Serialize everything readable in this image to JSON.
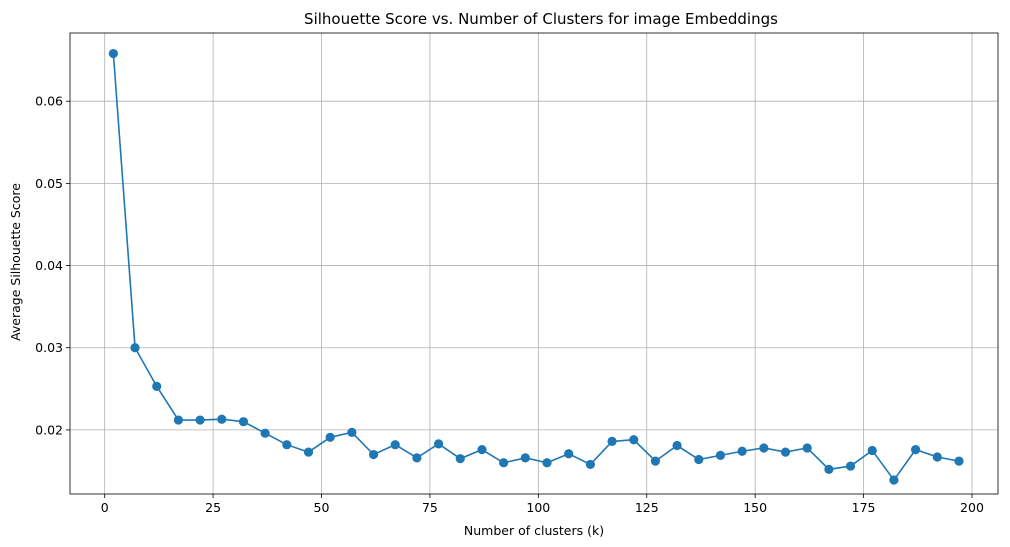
{
  "chart_data": {
    "type": "line",
    "title": "Silhouette Score vs. Number of Clusters for image Embeddings",
    "xlabel": "Number of clusters (k)",
    "ylabel": "Average Silhouette Score",
    "xlim": [
      -8,
      206
    ],
    "ylim": [
      0.0122,
      0.0683
    ],
    "xticks": [
      0,
      25,
      50,
      75,
      100,
      125,
      150,
      175,
      200
    ],
    "yticks": [
      0.02,
      0.03,
      0.04,
      0.05,
      0.06
    ],
    "ytick_labels": [
      "0.02",
      "0.03",
      "0.04",
      "0.05",
      "0.06"
    ],
    "grid": true,
    "line_color": "#1f77b4",
    "marker": "circle",
    "x": [
      2,
      7,
      12,
      17,
      22,
      27,
      32,
      37,
      42,
      47,
      52,
      57,
      62,
      67,
      72,
      77,
      82,
      87,
      92,
      97,
      102,
      107,
      112,
      117,
      122,
      127,
      132,
      137,
      142,
      147,
      152,
      157,
      162,
      167,
      172,
      177,
      182,
      187,
      192,
      197
    ],
    "y": [
      0.0658,
      0.03,
      0.0253,
      0.0212,
      0.0212,
      0.0213,
      0.021,
      0.0196,
      0.0182,
      0.0173,
      0.0191,
      0.0197,
      0.017,
      0.0182,
      0.0166,
      0.0183,
      0.0165,
      0.0176,
      0.016,
      0.0166,
      0.016,
      0.0171,
      0.0158,
      0.0186,
      0.0188,
      0.0162,
      0.0181,
      0.0164,
      0.0169,
      0.0174,
      0.0178,
      0.0173,
      0.0178,
      0.0152,
      0.0156,
      0.0175,
      0.0139,
      0.0176,
      0.0167,
      0.0162
    ]
  }
}
